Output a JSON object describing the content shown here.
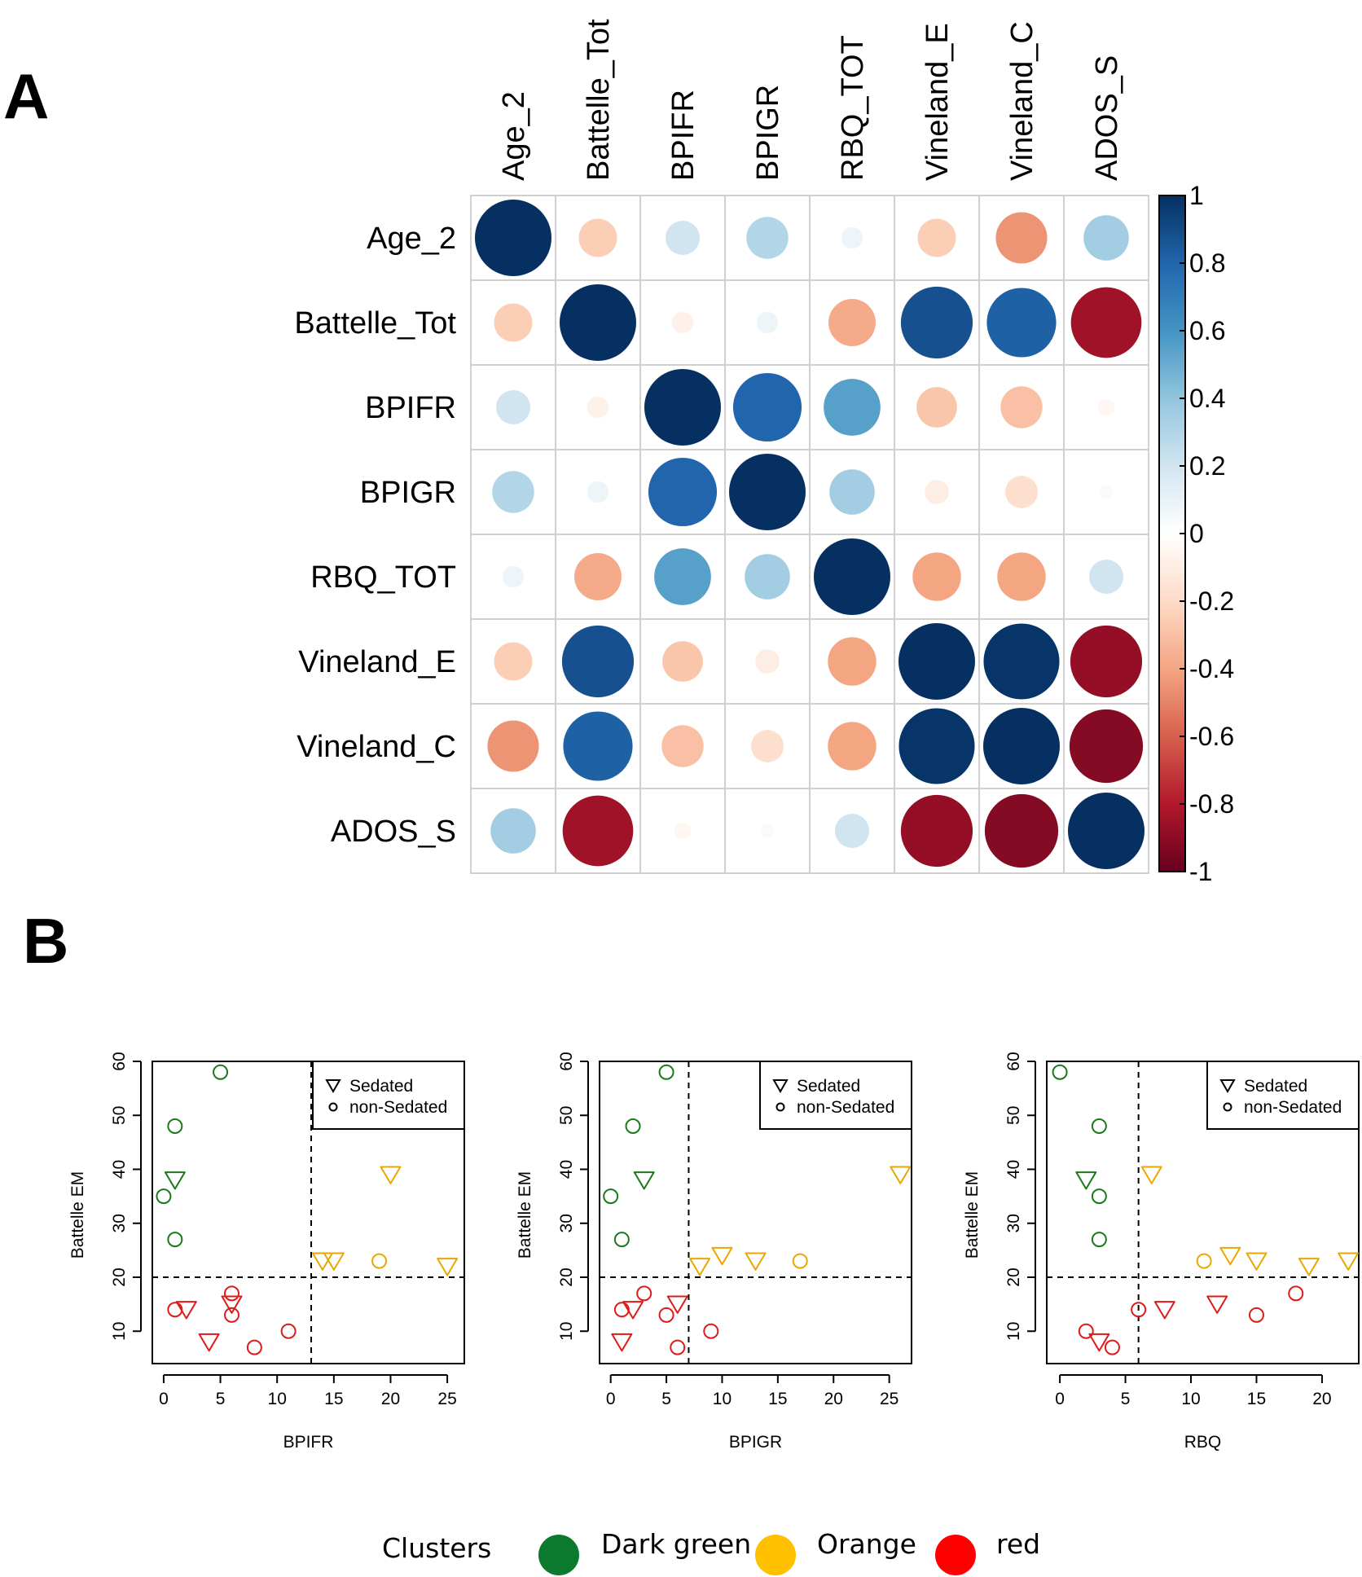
{
  "panel_labels": {
    "a": "A",
    "b": "B"
  },
  "chart_data": [
    {
      "type": "heatmap",
      "title": "",
      "variables": [
        "Age_2",
        "Battelle_Tot",
        "BPIFR",
        "BPIGR",
        "RBQ_TOT",
        "Vineland_E",
        "Vineland_C",
        "ADOS_S"
      ],
      "matrix": [
        [
          1.0,
          -0.25,
          0.2,
          0.3,
          0.08,
          -0.25,
          -0.45,
          0.35
        ],
        [
          -0.25,
          1.0,
          -0.08,
          0.08,
          -0.38,
          0.88,
          0.82,
          -0.85
        ],
        [
          0.2,
          -0.08,
          1.0,
          0.8,
          0.55,
          -0.28,
          -0.3,
          -0.05
        ],
        [
          0.3,
          0.08,
          0.8,
          1.0,
          0.35,
          -0.1,
          -0.18,
          0.03
        ],
        [
          0.08,
          -0.38,
          0.55,
          0.35,
          1.0,
          -0.4,
          -0.4,
          0.2
        ],
        [
          -0.25,
          0.88,
          -0.28,
          -0.1,
          -0.4,
          1.0,
          0.98,
          -0.88
        ],
        [
          -0.45,
          0.82,
          -0.3,
          -0.18,
          -0.4,
          0.98,
          1.0,
          -0.92
        ],
        [
          0.35,
          -0.85,
          -0.05,
          0.03,
          0.2,
          -0.88,
          -0.92,
          1.0
        ]
      ],
      "colorbar": {
        "range": [
          -1,
          1
        ],
        "ticks": [
          "1",
          "0.8",
          "0.6",
          "0.4",
          "0.2",
          "0",
          "-0.2",
          "-0.4",
          "-0.6",
          "-0.8",
          "-1"
        ]
      },
      "colors": {
        "negative": "#67001F",
        "neutral": "#FFFFFF",
        "positive": "#053061"
      }
    },
    {
      "type": "scatter",
      "xlabel": "BPIFR",
      "ylabel": "Battelle EM",
      "xlim": [
        -1,
        26.5
      ],
      "ylim": [
        4,
        60
      ],
      "xticks": [
        0,
        5,
        10,
        15,
        20,
        25
      ],
      "yticks": [
        10,
        20,
        30,
        40,
        50,
        60
      ],
      "vline": 13,
      "hline": 20,
      "legend": {
        "position": "top-right",
        "entries": [
          {
            "marker": "triangle",
            "label": "Sedated"
          },
          {
            "marker": "circle",
            "label": "non-Sedated"
          }
        ]
      },
      "points": [
        {
          "x": 5,
          "y": 58,
          "cluster": "green",
          "marker": "circle"
        },
        {
          "x": 1,
          "y": 48,
          "cluster": "green",
          "marker": "circle"
        },
        {
          "x": 1,
          "y": 38,
          "cluster": "green",
          "marker": "triangle"
        },
        {
          "x": 0,
          "y": 35,
          "cluster": "green",
          "marker": "circle"
        },
        {
          "x": 1,
          "y": 27,
          "cluster": "green",
          "marker": "circle"
        },
        {
          "x": 20,
          "y": 39,
          "cluster": "orange",
          "marker": "triangle"
        },
        {
          "x": 14,
          "y": 23,
          "cluster": "orange",
          "marker": "triangle"
        },
        {
          "x": 15,
          "y": 23,
          "cluster": "orange",
          "marker": "triangle"
        },
        {
          "x": 19,
          "y": 23,
          "cluster": "orange",
          "marker": "circle"
        },
        {
          "x": 25,
          "y": 22,
          "cluster": "orange",
          "marker": "triangle"
        },
        {
          "x": 6,
          "y": 17,
          "cluster": "red",
          "marker": "circle"
        },
        {
          "x": 6,
          "y": 15,
          "cluster": "red",
          "marker": "triangle"
        },
        {
          "x": 1,
          "y": 14,
          "cluster": "red",
          "marker": "circle"
        },
        {
          "x": 2,
          "y": 14,
          "cluster": "red",
          "marker": "triangle"
        },
        {
          "x": 6,
          "y": 13,
          "cluster": "red",
          "marker": "circle"
        },
        {
          "x": 11,
          "y": 10,
          "cluster": "red",
          "marker": "circle"
        },
        {
          "x": 4,
          "y": 8,
          "cluster": "red",
          "marker": "triangle"
        },
        {
          "x": 8,
          "y": 7,
          "cluster": "red",
          "marker": "circle"
        }
      ]
    },
    {
      "type": "scatter",
      "xlabel": "BPIGR",
      "ylabel": "Battelle EM",
      "xlim": [
        -1,
        27
      ],
      "ylim": [
        4,
        60
      ],
      "xticks": [
        0,
        5,
        10,
        15,
        20,
        25
      ],
      "yticks": [
        10,
        20,
        30,
        40,
        50,
        60
      ],
      "vline": 7,
      "hline": 20,
      "legend": {
        "position": "top-right",
        "entries": [
          {
            "marker": "triangle",
            "label": "Sedated"
          },
          {
            "marker": "circle",
            "label": "non-Sedated"
          }
        ]
      },
      "points": [
        {
          "x": 5,
          "y": 58,
          "cluster": "green",
          "marker": "circle"
        },
        {
          "x": 2,
          "y": 48,
          "cluster": "green",
          "marker": "circle"
        },
        {
          "x": 3,
          "y": 38,
          "cluster": "green",
          "marker": "triangle"
        },
        {
          "x": 0,
          "y": 35,
          "cluster": "green",
          "marker": "circle"
        },
        {
          "x": 1,
          "y": 27,
          "cluster": "green",
          "marker": "circle"
        },
        {
          "x": 26,
          "y": 39,
          "cluster": "orange",
          "marker": "triangle"
        },
        {
          "x": 10,
          "y": 24,
          "cluster": "orange",
          "marker": "triangle"
        },
        {
          "x": 13,
          "y": 23,
          "cluster": "orange",
          "marker": "triangle"
        },
        {
          "x": 17,
          "y": 23,
          "cluster": "orange",
          "marker": "circle"
        },
        {
          "x": 8,
          "y": 22,
          "cluster": "orange",
          "marker": "triangle"
        },
        {
          "x": 3,
          "y": 17,
          "cluster": "red",
          "marker": "circle"
        },
        {
          "x": 6,
          "y": 15,
          "cluster": "red",
          "marker": "triangle"
        },
        {
          "x": 1,
          "y": 14,
          "cluster": "red",
          "marker": "circle"
        },
        {
          "x": 2,
          "y": 14,
          "cluster": "red",
          "marker": "triangle"
        },
        {
          "x": 5,
          "y": 13,
          "cluster": "red",
          "marker": "circle"
        },
        {
          "x": 9,
          "y": 10,
          "cluster": "red",
          "marker": "circle"
        },
        {
          "x": 1,
          "y": 8,
          "cluster": "red",
          "marker": "triangle"
        },
        {
          "x": 6,
          "y": 7,
          "cluster": "red",
          "marker": "circle"
        }
      ]
    },
    {
      "type": "scatter",
      "xlabel": "RBQ",
      "ylabel": "Battelle EM",
      "xlim": [
        -1,
        22.8
      ],
      "ylim": [
        4,
        60
      ],
      "xticks": [
        0,
        5,
        10,
        15,
        20
      ],
      "yticks": [
        10,
        20,
        30,
        40,
        50,
        60
      ],
      "vline": 6,
      "hline": 20,
      "legend": {
        "position": "top-right",
        "entries": [
          {
            "marker": "triangle",
            "label": "Sedated"
          },
          {
            "marker": "circle",
            "label": "non-Sedated"
          }
        ]
      },
      "points": [
        {
          "x": 0,
          "y": 58,
          "cluster": "green",
          "marker": "circle"
        },
        {
          "x": 3,
          "y": 48,
          "cluster": "green",
          "marker": "circle"
        },
        {
          "x": 2,
          "y": 38,
          "cluster": "green",
          "marker": "triangle"
        },
        {
          "x": 3,
          "y": 35,
          "cluster": "green",
          "marker": "circle"
        },
        {
          "x": 3,
          "y": 27,
          "cluster": "green",
          "marker": "circle"
        },
        {
          "x": 7,
          "y": 39,
          "cluster": "orange",
          "marker": "triangle"
        },
        {
          "x": 11,
          "y": 23,
          "cluster": "orange",
          "marker": "circle"
        },
        {
          "x": 13,
          "y": 24,
          "cluster": "orange",
          "marker": "triangle"
        },
        {
          "x": 15,
          "y": 23,
          "cluster": "orange",
          "marker": "triangle"
        },
        {
          "x": 19,
          "y": 22,
          "cluster": "orange",
          "marker": "triangle"
        },
        {
          "x": 22,
          "y": 23,
          "cluster": "orange",
          "marker": "triangle"
        },
        {
          "x": 18,
          "y": 17,
          "cluster": "red",
          "marker": "circle"
        },
        {
          "x": 12,
          "y": 15,
          "cluster": "red",
          "marker": "triangle"
        },
        {
          "x": 6,
          "y": 14,
          "cluster": "red",
          "marker": "circle"
        },
        {
          "x": 8,
          "y": 14,
          "cluster": "red",
          "marker": "triangle"
        },
        {
          "x": 15,
          "y": 13,
          "cluster": "red",
          "marker": "circle"
        },
        {
          "x": 2,
          "y": 10,
          "cluster": "red",
          "marker": "circle"
        },
        {
          "x": 3,
          "y": 8,
          "cluster": "red",
          "marker": "triangle"
        },
        {
          "x": 4,
          "y": 7,
          "cluster": "red",
          "marker": "circle"
        }
      ]
    }
  ],
  "cluster_colors": {
    "green": "#1A7A1A",
    "orange": "#E8A800",
    "red": "#E01919"
  },
  "clusters_legend": {
    "title": "Clusters",
    "items": [
      {
        "label": "Dark green",
        "color": "#0C7A2E"
      },
      {
        "label": "Orange",
        "color": "#FFC000"
      },
      {
        "label": "red",
        "color": "#FF0000"
      }
    ]
  }
}
